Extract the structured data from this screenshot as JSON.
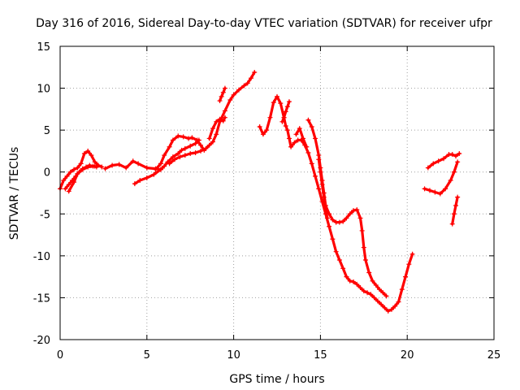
{
  "chart_data": {
    "type": "scatter",
    "title": "Day 316 of 2016, Sidereal Day-to-day VTEC variation (SDTVAR) for receiver ufpr",
    "xlabel": "GPS time / hours",
    "ylabel": "SDTVAR / TECUs",
    "xlim": [
      0,
      25
    ],
    "ylim": [
      -20,
      15
    ],
    "xticks": [
      "0",
      "5",
      "10",
      "15",
      "20",
      "25"
    ],
    "yticks": [
      "15",
      "10",
      "5",
      "0",
      "-5",
      "-10",
      "-15",
      "-20"
    ],
    "grid": true,
    "marker": "plus",
    "color": "#ff0000",
    "series": [
      {
        "x": [
          0.0,
          0.2,
          0.4,
          0.6,
          0.8,
          1.0,
          1.2,
          1.4,
          1.6,
          1.8,
          2.0,
          2.2,
          2.4
        ],
        "y": [
          -2.0,
          -1.0,
          -0.5,
          0.0,
          0.3,
          0.5,
          1.0,
          2.2,
          2.5,
          2.0,
          1.2,
          0.8,
          0.6
        ]
      },
      {
        "x": [
          0.3,
          0.5,
          0.7,
          0.9,
          1.1,
          1.3,
          1.5,
          1.7,
          1.9,
          2.1
        ],
        "y": [
          -2.0,
          -1.5,
          -1.0,
          -0.5,
          0.0,
          0.4,
          0.6,
          0.8,
          0.7,
          0.6
        ]
      },
      {
        "x": [
          0.5,
          0.8,
          1.0,
          1.3,
          1.6,
          2.0
        ],
        "y": [
          -2.3,
          -1.2,
          -0.2,
          0.3,
          0.6,
          0.7
        ]
      },
      {
        "x": [
          2.6,
          3.0,
          3.4,
          3.8,
          4.2,
          4.5,
          5.0,
          5.5,
          5.8
        ],
        "y": [
          0.4,
          0.8,
          0.9,
          0.5,
          1.3,
          1.0,
          0.5,
          0.4,
          0.3
        ]
      },
      {
        "x": [
          4.3,
          4.6,
          5.0,
          5.4,
          5.8,
          6.0,
          6.2,
          6.5,
          6.8,
          7.0,
          7.2,
          7.5,
          7.8,
          8.0
        ],
        "y": [
          -1.4,
          -1.0,
          -0.7,
          -0.3,
          0.3,
          0.7,
          1.2,
          1.8,
          2.2,
          2.6,
          2.8,
          3.1,
          3.4,
          3.8
        ]
      },
      {
        "x": [
          5.5,
          5.8,
          6.0,
          6.3,
          6.5,
          6.8,
          7.1,
          7.4,
          7.6,
          7.9,
          8.1,
          8.3
        ],
        "y": [
          0.3,
          1.0,
          2.0,
          3.0,
          3.8,
          4.3,
          4.2,
          4.0,
          4.1,
          3.8,
          3.2,
          2.6
        ]
      },
      {
        "x": [
          6.3,
          6.6,
          6.9,
          7.2,
          7.5,
          7.8,
          8.1,
          8.4,
          8.6,
          8.8,
          9.0,
          9.2,
          9.5,
          9.8,
          10.0,
          10.3,
          10.6,
          10.8,
          11.0,
          11.2
        ],
        "y": [
          1.0,
          1.5,
          1.8,
          2.0,
          2.2,
          2.3,
          2.5,
          2.8,
          3.2,
          3.6,
          4.5,
          6.0,
          7.3,
          8.6,
          9.2,
          9.8,
          10.3,
          10.6,
          11.2,
          11.9
        ]
      },
      {
        "x": [
          8.6,
          8.8,
          9.0,
          9.2,
          9.4,
          9.5
        ],
        "y": [
          4.0,
          5.2,
          6.0,
          6.3,
          6.1,
          6.5
        ]
      },
      {
        "x": [
          9.2,
          9.3,
          9.4,
          9.5
        ],
        "y": [
          8.5,
          9.0,
          9.5,
          10.0
        ]
      },
      {
        "x": [
          11.5,
          11.7,
          11.9,
          12.1,
          12.3,
          12.5,
          12.7,
          12.9,
          13.0,
          13.1,
          13.2,
          13.3,
          13.5,
          13.7,
          13.9,
          14.1,
          14.3,
          14.5,
          14.7,
          14.9,
          15.1,
          15.3,
          15.5,
          15.7,
          15.9,
          16.1,
          16.3,
          16.5,
          16.7,
          16.9,
          17.1,
          17.3,
          17.5,
          17.7,
          17.9,
          18.1,
          18.3,
          18.5,
          18.7,
          18.9,
          19.1,
          19.3,
          19.5,
          19.7,
          19.9,
          20.1,
          20.3
        ],
        "y": [
          5.4,
          4.5,
          5.0,
          6.5,
          8.3,
          9.0,
          8.2,
          6.5,
          5.5,
          5.0,
          4.0,
          3.0,
          3.5,
          3.8,
          3.8,
          3.2,
          2.3,
          1.0,
          -0.5,
          -2.0,
          -3.5,
          -5.0,
          -6.5,
          -8.0,
          -9.5,
          -10.5,
          -11.5,
          -12.5,
          -13.0,
          -13.1,
          -13.4,
          -13.8,
          -14.2,
          -14.4,
          -14.6,
          -15.0,
          -15.4,
          -15.8,
          -16.2,
          -16.6,
          -16.4,
          -16.0,
          -15.5,
          -14.0,
          -12.5,
          -11.0,
          -9.8
        ]
      },
      {
        "x": [
          12.8,
          12.9,
          13.0,
          13.1,
          13.2
        ],
        "y": [
          6.0,
          6.5,
          7.2,
          7.8,
          8.4
        ]
      },
      {
        "x": [
          13.6,
          13.8,
          14.0,
          14.2
        ],
        "y": [
          4.5,
          5.2,
          4.0,
          3.0
        ]
      },
      {
        "x": [
          14.3,
          14.5,
          14.7,
          14.9,
          15.0,
          15.1,
          15.2,
          15.3,
          15.5,
          15.7,
          15.9,
          16.1,
          16.3,
          16.5,
          16.7,
          16.9,
          17.1,
          17.3,
          17.4,
          17.5,
          17.6,
          17.8,
          18.0,
          18.2,
          18.4,
          18.6,
          18.8
        ],
        "y": [
          6.2,
          5.4,
          4.0,
          2.0,
          0.5,
          -1.0,
          -2.5,
          -4.0,
          -5.0,
          -5.7,
          -6.0,
          -6.0,
          -5.9,
          -5.5,
          -5.0,
          -4.6,
          -4.5,
          -5.5,
          -7.0,
          -9.0,
          -10.5,
          -12.0,
          -13.0,
          -13.5,
          -14.0,
          -14.4,
          -14.8
        ]
      },
      {
        "x": [
          14.9,
          15.0,
          15.1,
          15.2,
          15.3,
          15.4
        ],
        "y": [
          1.5,
          0.0,
          -1.5,
          -3.0,
          -4.5,
          -5.5
        ]
      },
      {
        "x": [
          21.0,
          21.3,
          21.6,
          21.9,
          22.2,
          22.5,
          22.7,
          22.9
        ],
        "y": [
          -2.0,
          -2.2,
          -2.4,
          -2.6,
          -2.0,
          -1.0,
          0.0,
          1.2
        ]
      },
      {
        "x": [
          21.2,
          21.5,
          21.8,
          22.1,
          22.4,
          22.6,
          22.8,
          23.0
        ],
        "y": [
          0.5,
          1.0,
          1.3,
          1.6,
          2.1,
          2.1,
          1.9,
          2.2
        ]
      },
      {
        "x": [
          22.6,
          22.7,
          22.8,
          22.9
        ],
        "y": [
          -6.2,
          -5.0,
          -4.0,
          -3.0
        ]
      }
    ]
  }
}
